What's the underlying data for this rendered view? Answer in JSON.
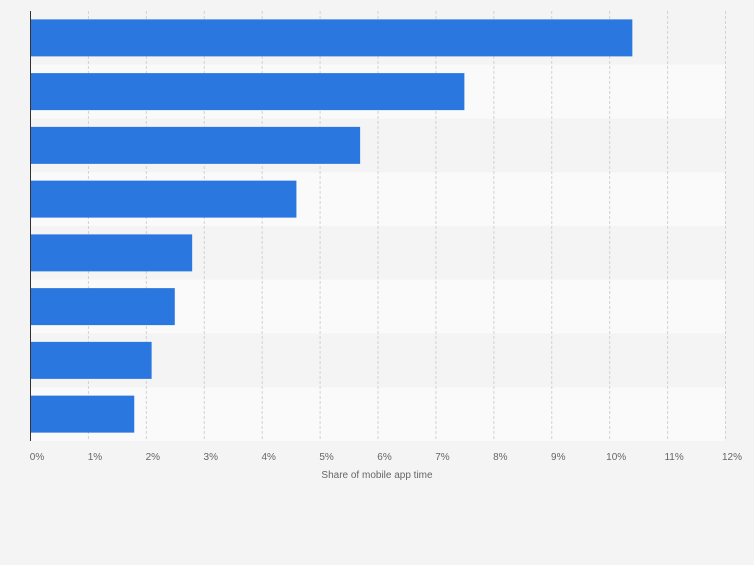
{
  "chart_data": {
    "type": "bar",
    "orientation": "horizontal",
    "title": "",
    "xlabel": "Share of mobile app time",
    "ylabel": "",
    "xlim": [
      0,
      12
    ],
    "x_ticks": [
      "0%",
      "1%",
      "2%",
      "3%",
      "4%",
      "5%",
      "6%",
      "7%",
      "8%",
      "9%",
      "10%",
      "11%",
      "12%"
    ],
    "categories": [
      "",
      "",
      "",
      "",
      "",
      "",
      "",
      ""
    ],
    "values": [
      10.4,
      7.5,
      5.7,
      4.6,
      2.8,
      2.5,
      2.1,
      1.8
    ],
    "unit": "%",
    "grid": true,
    "legend": "none",
    "colors": {
      "bar": "#2b77e0",
      "band_a": "#f4f4f4",
      "band_b": "#fafafa",
      "gridline": "#d2d2d2",
      "axis": "#333333",
      "tick_text": "#666666"
    }
  }
}
